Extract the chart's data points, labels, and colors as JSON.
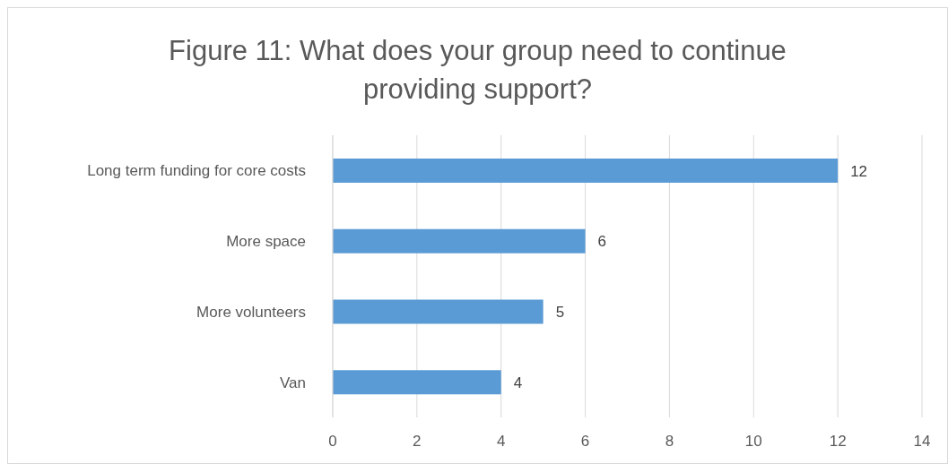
{
  "chart_data": {
    "type": "bar",
    "orientation": "horizontal",
    "title": "Figure 11: What does your group need to continue providing support?",
    "categories": [
      "Long term funding for core costs",
      "More space",
      "More volunteers",
      "Van"
    ],
    "values": [
      12,
      6,
      5,
      4
    ],
    "color": "#5b9bd5",
    "xlim": [
      0,
      14
    ],
    "xticks": [
      0,
      2,
      4,
      6,
      8,
      10,
      12,
      14
    ],
    "grid": "x",
    "data_labels": true
  }
}
